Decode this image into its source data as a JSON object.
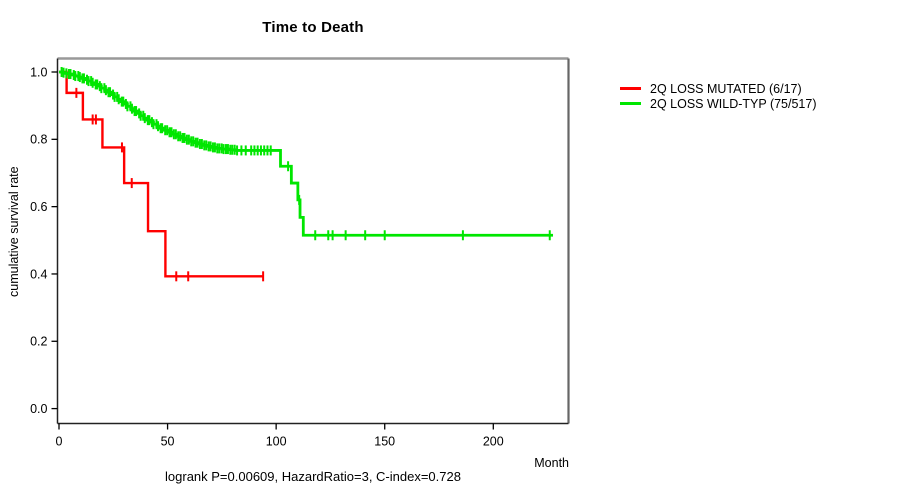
{
  "chart_data": {
    "type": "line",
    "subtype": "kaplan-meier-step",
    "title": "Time to Death",
    "xlabel": "Month",
    "ylabel": "cumulative survival rate",
    "annotation": "logrank P=0.00609, HazardRatio=3, C-index=0.728",
    "xlim": [
      0,
      235
    ],
    "ylim": [
      0.0,
      1.0
    ],
    "x_ticks": [
      0,
      50,
      100,
      150,
      200
    ],
    "x_tick_labels": [
      "0",
      "50",
      "100",
      "150",
      "200"
    ],
    "y_ticks": [
      0.0,
      0.2,
      0.4,
      0.6,
      0.8,
      1.0
    ],
    "y_tick_labels": [
      "0.0",
      "0.2",
      "0.4",
      "0.6",
      "0.8",
      "1.0"
    ],
    "grid": false,
    "legend_position": "right-outside",
    "frame_colors": {
      "top": "#999999",
      "right": "#666666",
      "bottom": "#222222",
      "left": "#222222"
    },
    "series": [
      {
        "name": "2Q LOSS MUTATED (6/17)",
        "color": "#ff0000",
        "line_width": 2.4,
        "steps": [
          [
            0,
            1.0
          ],
          [
            3.5,
            0.938
          ],
          [
            11,
            0.859
          ],
          [
            20,
            0.776
          ],
          [
            30,
            0.67
          ],
          [
            41,
            0.527
          ],
          [
            49,
            0.393
          ],
          [
            94,
            0.393
          ]
        ],
        "censor_months": [
          8,
          15.5,
          17,
          29,
          33.5,
          54,
          59.5,
          94
        ]
      },
      {
        "name": "2Q LOSS WILD-TYP (75/517)",
        "color": "#00e600",
        "line_width": 2.8,
        "steps": [
          [
            0,
            1.0
          ],
          [
            1.5,
            0.998
          ],
          [
            3,
            0.996
          ],
          [
            4.5,
            0.994
          ],
          [
            6,
            0.991
          ],
          [
            7.5,
            0.988
          ],
          [
            9,
            0.985
          ],
          [
            10.5,
            0.981
          ],
          [
            12,
            0.977
          ],
          [
            13.5,
            0.973
          ],
          [
            15,
            0.968
          ],
          [
            16.5,
            0.963
          ],
          [
            18,
            0.958
          ],
          [
            19.5,
            0.952
          ],
          [
            21,
            0.946
          ],
          [
            22.5,
            0.94
          ],
          [
            24,
            0.933
          ],
          [
            25.5,
            0.926
          ],
          [
            27,
            0.919
          ],
          [
            28.5,
            0.912
          ],
          [
            30,
            0.905
          ],
          [
            31.5,
            0.898
          ],
          [
            33,
            0.891
          ],
          [
            34.5,
            0.884
          ],
          [
            36,
            0.877
          ],
          [
            37.5,
            0.87
          ],
          [
            39,
            0.863
          ],
          [
            40.5,
            0.857
          ],
          [
            42,
            0.851
          ],
          [
            43.5,
            0.845
          ],
          [
            45,
            0.839
          ],
          [
            46.5,
            0.833
          ],
          [
            48,
            0.827
          ],
          [
            50,
            0.821
          ],
          [
            52,
            0.815
          ],
          [
            54,
            0.809
          ],
          [
            56,
            0.804
          ],
          [
            58,
            0.799
          ],
          [
            60,
            0.794
          ],
          [
            62,
            0.79
          ],
          [
            64,
            0.786
          ],
          [
            66,
            0.782
          ],
          [
            68,
            0.779
          ],
          [
            70,
            0.776
          ],
          [
            72.5,
            0.773
          ],
          [
            75,
            0.771
          ],
          [
            78,
            0.769
          ],
          [
            81,
            0.767
          ],
          [
            102,
            0.72
          ],
          [
            107,
            0.67
          ],
          [
            110,
            0.62
          ],
          [
            111,
            0.568
          ],
          [
            112.5,
            0.515
          ],
          [
            227.5,
            0.515
          ]
        ],
        "censor_months": [
          1.2,
          2.1,
          3.4,
          4.6,
          5.3,
          6.8,
          7.5,
          8.9,
          9.6,
          10.8,
          11.5,
          12.9,
          13.6,
          14.8,
          15.5,
          16.9,
          17.6,
          18.8,
          19.5,
          20.9,
          21.6,
          22.8,
          23.5,
          24.9,
          25.6,
          26.8,
          27.5,
          28.9,
          29.6,
          30.8,
          31.5,
          32.9,
          33.6,
          34.8,
          35.5,
          36.9,
          37.6,
          38.8,
          39.5,
          40.9,
          41.6,
          42.8,
          43.5,
          44.9,
          45.6,
          46.8,
          47.5,
          48.9,
          49.8,
          50.9,
          51.8,
          52.9,
          53.8,
          54.9,
          55.8,
          56.9,
          57.8,
          58.9,
          59.8,
          60.9,
          61.8,
          62.9,
          63.8,
          64.9,
          65.8,
          66.9,
          67.8,
          68.9,
          69.8,
          70.9,
          71.8,
          72.9,
          73.8,
          74.9,
          75.8,
          76.9,
          77.8,
          78.9,
          79.8,
          80.9,
          82,
          84,
          86,
          88.5,
          90,
          91.5,
          93,
          94.5,
          96,
          97.5,
          105.5,
          110.6,
          118,
          124,
          126,
          132,
          141,
          150,
          186,
          226
        ]
      }
    ]
  }
}
